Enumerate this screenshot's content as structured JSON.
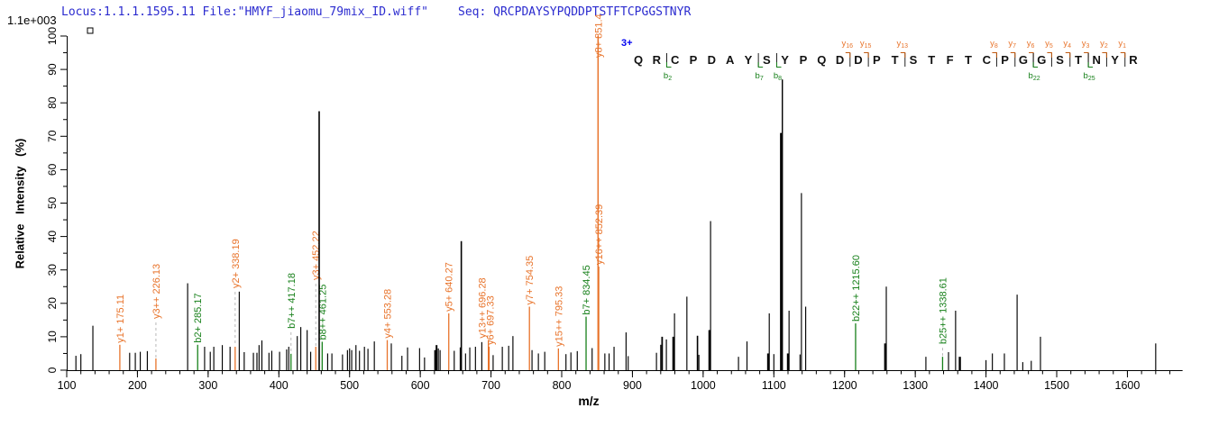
{
  "header": {
    "locus_file": "Locus:1.1.1.1595.11 File:\"HMYF_jiaomu_79mix_ID.wiff\"",
    "seq_line": "Seq: QRCPDAYSYPQDDPTSTFTCPGGSTNYR",
    "max_intensity": "1.1e+003"
  },
  "sequence_panel": {
    "charge_label": "3+",
    "residues": "QRCPDAYSYPQDDPTSTFTCPGGSTNYR",
    "y_markers": [
      {
        "name": "y16",
        "base": "y",
        "sub": "16",
        "before": 12
      },
      {
        "name": "y15",
        "base": "y",
        "sub": "15",
        "before": 13
      },
      {
        "name": "y13",
        "base": "y",
        "sub": "13",
        "before": 15
      },
      {
        "name": "y8",
        "base": "y",
        "sub": "8",
        "before": 20
      },
      {
        "name": "y7",
        "base": "y",
        "sub": "7",
        "before": 21
      },
      {
        "name": "y6",
        "base": "y",
        "sub": "6",
        "before": 22
      },
      {
        "name": "y5",
        "base": "y",
        "sub": "5",
        "before": 23
      },
      {
        "name": "y4",
        "base": "y",
        "sub": "4",
        "before": 24
      },
      {
        "name": "y3",
        "base": "y",
        "sub": "3",
        "before": 25
      },
      {
        "name": "y2",
        "base": "y",
        "sub": "2",
        "before": 26
      },
      {
        "name": "y1",
        "base": "y",
        "sub": "1",
        "before": 27
      }
    ],
    "b_markers": [
      {
        "name": "b2",
        "base": "b",
        "sub": "2",
        "before": 2
      },
      {
        "name": "b7",
        "base": "b",
        "sub": "7",
        "before": 7
      },
      {
        "name": "b8",
        "base": "b",
        "sub": "8",
        "before": 8
      },
      {
        "name": "b22",
        "base": "b",
        "sub": "22",
        "before": 22
      },
      {
        "name": "b25",
        "base": "b",
        "sub": "25",
        "before": 25
      }
    ]
  },
  "chart_data": {
    "type": "bar",
    "subtype": "ms2-spectrum",
    "x_label": "m/z",
    "y_label": "Relative  Intensity  (%)",
    "x_range": [
      100,
      1678
    ],
    "y_range": [
      0,
      100
    ],
    "x_major_ticks": [
      100,
      200,
      300,
      400,
      500,
      600,
      700,
      800,
      900,
      1000,
      1100,
      1200,
      1300,
      1400,
      1500,
      1600
    ],
    "x_minor_step": 20,
    "y_major_step": 10,
    "y_minor_step": 5,
    "labeled_peaks": [
      {
        "label": "y1+ 175.11",
        "series": "y",
        "mz": 175.11,
        "pct": 7.6,
        "gap": 0
      },
      {
        "label": "y3++ 226.13",
        "series": "y",
        "mz": 226.13,
        "pct": 3.5,
        "gap": 42
      },
      {
        "label": "b2+ 285.17",
        "series": "b",
        "mz": 285.17,
        "pct": 7.6,
        "gap": 0
      },
      {
        "label": "y2+ 338.19",
        "series": "y",
        "mz": 338.19,
        "pct": 7.0,
        "gap": 63
      },
      {
        "label": "b7++ 417.18",
        "series": "b",
        "mz": 417.18,
        "pct": 4.9,
        "gap": 26
      },
      {
        "label": "y3+ 452.22",
        "series": "y",
        "mz": 452.22,
        "pct": 7.0,
        "gap": 72
      },
      {
        "label": "b8++ 461.25",
        "series": "b",
        "mz": 461.25,
        "pct": 8.5,
        "gap": 0
      },
      {
        "label": "y4+ 553.28",
        "series": "y",
        "mz": 553.28,
        "pct": 9.0,
        "gap": 0
      },
      {
        "label": "y5+ 640.27",
        "series": "y",
        "mz": 640.27,
        "pct": 17.0,
        "gap": 0
      },
      {
        "label": "y13++ 696.28",
        "series": "y",
        "mz": 696.28,
        "pct": 9.0,
        "gap": 0,
        "dx": -7
      },
      {
        "label": "y6+ 697.33",
        "series": "y",
        "mz": 697.33,
        "pct": 7.0,
        "gap": 0,
        "dx": 1
      },
      {
        "label": "y7+ 754.35",
        "series": "y",
        "mz": 754.35,
        "pct": 19.0,
        "gap": 0
      },
      {
        "label": "y15++ 795.33",
        "series": "y",
        "mz": 795.33,
        "pct": 6.5,
        "gap": 0
      },
      {
        "label": "b7+ 834.45",
        "series": "b",
        "mz": 834.45,
        "pct": 16.0,
        "gap": 0
      },
      {
        "label": "y8+ 851.4",
        "series": "y",
        "mz": 851.4,
        "pct": 100,
        "gap": -26,
        "w": 1.5
      },
      {
        "label": "y16++ 852.39",
        "series": "y",
        "mz": 852.39,
        "pct": 31.0,
        "gap": 0
      },
      {
        "label": "b22++ 1215.60",
        "series": "b",
        "mz": 1215.6,
        "pct": 14.0,
        "gap": 0
      },
      {
        "label": "b25++ 1338.61",
        "series": "b",
        "mz": 1338.61,
        "pct": 4.0,
        "gap": 12
      }
    ],
    "unlabeled_peaks": [
      [
        113,
        4.3
      ],
      [
        120,
        4.8
      ],
      [
        137,
        13.3
      ],
      [
        189,
        5.2
      ],
      [
        197,
        5.2
      ],
      [
        204,
        5.5
      ],
      [
        214,
        5.7
      ],
      [
        271,
        26
      ],
      [
        295,
        7
      ],
      [
        303,
        5.5
      ],
      [
        308,
        7
      ],
      [
        320,
        7.5
      ],
      [
        331,
        7
      ],
      [
        344,
        23.5
      ],
      [
        351,
        5.4
      ],
      [
        364,
        5.2
      ],
      [
        369,
        5.2
      ],
      [
        372,
        7.5
      ],
      [
        376,
        8.9
      ],
      [
        386,
        5.2
      ],
      [
        390,
        5.8
      ],
      [
        401,
        5.5
      ],
      [
        411,
        6.2
      ],
      [
        414,
        7
      ],
      [
        426,
        10.2
      ],
      [
        431,
        12.9
      ],
      [
        440,
        12
      ],
      [
        445,
        5.5
      ],
      [
        457,
        77.5,
        1.6
      ],
      [
        469,
        5
      ],
      [
        475,
        5
      ],
      [
        490,
        4.7
      ],
      [
        497,
        6
      ],
      [
        500,
        6.5
      ],
      [
        503,
        6
      ],
      [
        509,
        7.5
      ],
      [
        514,
        5.8
      ],
      [
        521,
        7
      ],
      [
        526,
        6.4
      ],
      [
        535,
        8.6
      ],
      [
        559,
        8
      ],
      [
        574,
        4.3
      ],
      [
        582,
        6.8
      ],
      [
        599,
        6.6
      ],
      [
        606,
        3.8
      ],
      [
        621,
        6,
        2
      ],
      [
        623,
        7.5,
        2
      ],
      [
        625.5,
        6.5
      ],
      [
        628,
        6
      ],
      [
        648,
        5.8
      ],
      [
        656.5,
        6.8
      ],
      [
        658,
        38.6,
        1.6
      ],
      [
        664,
        5
      ],
      [
        670,
        6.8
      ],
      [
        678,
        7
      ],
      [
        687,
        8.4
      ],
      [
        703,
        4.5
      ],
      [
        716,
        7
      ],
      [
        725,
        7.3
      ],
      [
        731,
        10.2
      ],
      [
        758,
        6
      ],
      [
        767,
        5
      ],
      [
        776,
        5.5
      ],
      [
        806,
        4.8
      ],
      [
        813,
        5.3
      ],
      [
        822,
        5.7
      ],
      [
        843,
        6.6
      ],
      [
        861,
        5
      ],
      [
        867,
        5
      ],
      [
        874,
        7
      ],
      [
        891,
        11.3
      ],
      [
        894,
        4.2
      ],
      [
        934,
        5.2
      ],
      [
        940,
        7.6
      ],
      [
        942,
        10,
        1.8
      ],
      [
        948,
        9.2
      ],
      [
        958,
        10,
        2.4
      ],
      [
        959.5,
        17
      ],
      [
        977,
        22
      ],
      [
        992,
        10.3,
        1.6
      ],
      [
        994,
        4.6
      ],
      [
        1009,
        12,
        2.4
      ],
      [
        1010.5,
        44.6
      ],
      [
        1050,
        4
      ],
      [
        1062,
        8.6
      ],
      [
        1092,
        5,
        2.4
      ],
      [
        1093.5,
        17
      ],
      [
        1100,
        4.8
      ],
      [
        1110.5,
        71,
        2.8
      ],
      [
        1112,
        87,
        1.4
      ],
      [
        1120,
        5,
        2.4
      ],
      [
        1121.5,
        17.8
      ],
      [
        1137,
        4.7
      ],
      [
        1139,
        53
      ],
      [
        1145,
        19
      ],
      [
        1257.5,
        8,
        2.4
      ],
      [
        1259,
        25
      ],
      [
        1315,
        4
      ],
      [
        1347,
        5.4
      ],
      [
        1357,
        17.8
      ],
      [
        1363,
        4,
        2.4
      ],
      [
        1400,
        3
      ],
      [
        1409,
        5
      ],
      [
        1426,
        5
      ],
      [
        1444,
        22.6
      ],
      [
        1452,
        2.4
      ],
      [
        1464,
        2.8
      ],
      [
        1477,
        10
      ],
      [
        1640,
        8
      ]
    ]
  },
  "colors": {
    "y_ion": "#e8732a",
    "b_ion": "#17801a",
    "y_arm": "#c05a10",
    "b_arm": "#17801a",
    "peak": "#000000",
    "dash": "#b8b8b8",
    "axis": "#000000",
    "marker_bar": "#222222",
    "header_blue": "#2b2bcf",
    "charge_blue": "#0000f0"
  }
}
